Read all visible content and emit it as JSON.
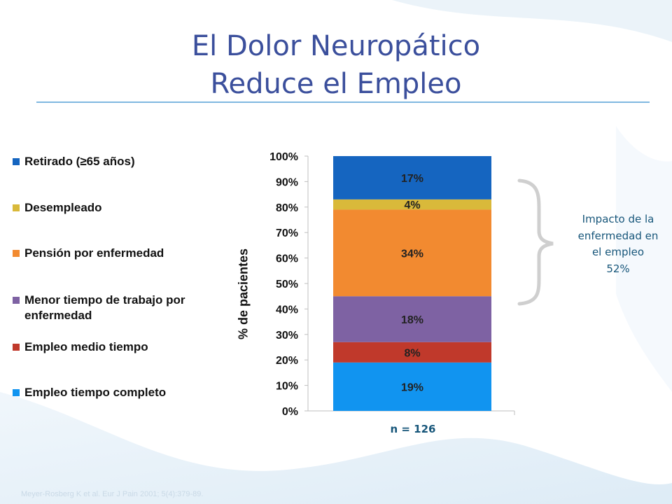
{
  "title": {
    "line1": "El Dolor Neuropático",
    "line2": "Reduce el Empleo"
  },
  "legend": [
    {
      "label": "Retirado (≥65 años)",
      "color": "#1565c0"
    },
    {
      "label": "Desempleado",
      "color": "#d9b93a"
    },
    {
      "label": "Pensión por enfermedad",
      "color": "#f28a30"
    },
    {
      "label": "Menor tiempo de trabajo por enfermedad",
      "color": "#7e62a3"
    },
    {
      "label": "Empleo medio tiempo",
      "color": "#c0392b"
    },
    {
      "label": "Empleo tiempo completo",
      "color": "#1194f0"
    }
  ],
  "impact_note": "Impacto de la\nenfermedad en\nel  empleo\n52%",
  "sample_size": "n = 126",
  "citation": "Meyer-Rosberg K et al. Eur J Pain 2001; 5(4):379-89.",
  "chart_data": {
    "type": "bar",
    "stacked": true,
    "categories": [
      "n = 126"
    ],
    "ylabel": "% de pacientes",
    "xlabel": "",
    "ylim": [
      0,
      100
    ],
    "yticks": [
      "0%",
      "10%",
      "20%",
      "30%",
      "40%",
      "50%",
      "60%",
      "70%",
      "80%",
      "90%",
      "100%"
    ],
    "grid": false,
    "legend_position": "left",
    "series": [
      {
        "name": "Empleo tiempo completo",
        "values": [
          19
        ],
        "label": "19%",
        "color": "#1194f0"
      },
      {
        "name": "Empleo medio tiempo",
        "values": [
          8
        ],
        "label": "8%",
        "color": "#c0392b"
      },
      {
        "name": "Menor tiempo de trabajo por enfermedad",
        "values": [
          18
        ],
        "label": "18%",
        "color": "#7e62a3"
      },
      {
        "name": "Pensión por enfermedad",
        "values": [
          34
        ],
        "label": "34%",
        "color": "#f28a30"
      },
      {
        "name": "Desempleado",
        "values": [
          4
        ],
        "label": "4%",
        "color": "#d9b93a"
      },
      {
        "name": "Retirado (≥65 años)",
        "values": [
          17
        ],
        "label": "17%",
        "color": "#1565c0"
      }
    ]
  }
}
